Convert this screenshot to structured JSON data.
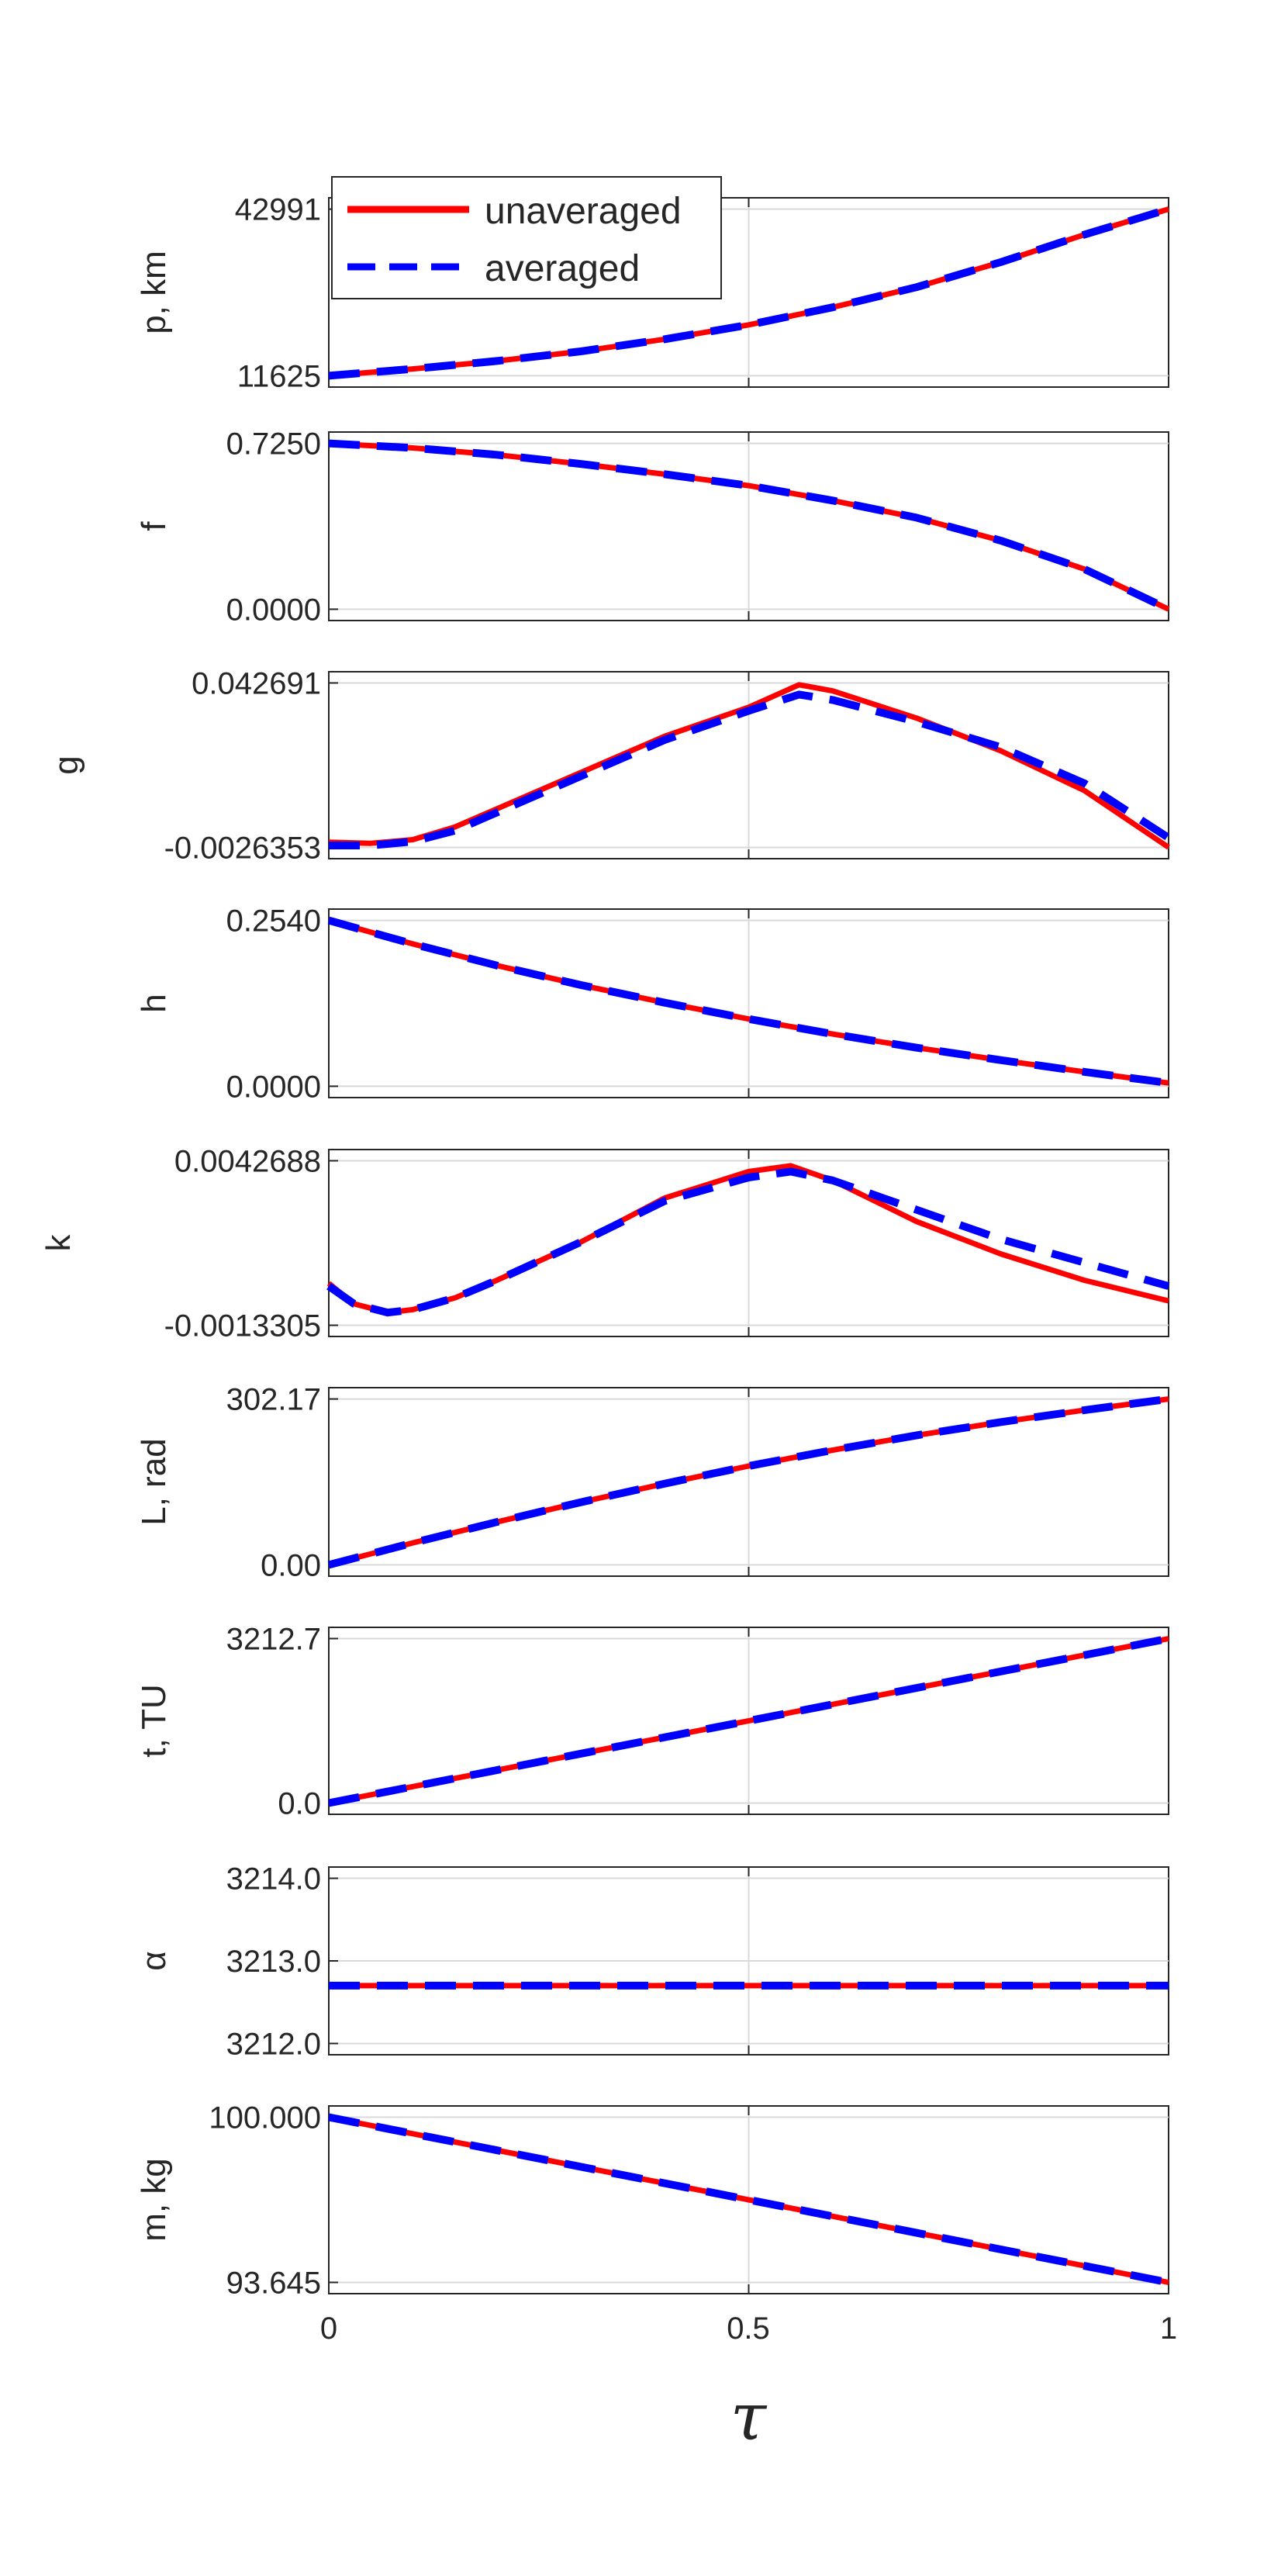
{
  "chart_data": {
    "type": "line",
    "x_label": "τ",
    "x_ticks": [
      "0",
      "0.5",
      "1"
    ],
    "xlim": [
      0,
      1
    ],
    "grid": true,
    "legend": {
      "placement": "top-left",
      "entries": [
        {
          "name": "unaveraged",
          "color": "#ff0000",
          "style": "solid"
        },
        {
          "name": "averaged",
          "color": "#0000ff",
          "style": "dashed"
        }
      ]
    },
    "panels": [
      {
        "ylabel": "p, km",
        "yticks": [
          "11625",
          "42991"
        ],
        "ylim": [
          11625,
          42991
        ],
        "series": [
          {
            "name": "unaveraged",
            "x": [
              0,
              0.1,
              0.2,
              0.3,
              0.4,
              0.5,
              0.6,
              0.7,
              0.8,
              0.9,
              1.0
            ],
            "y": [
              11625,
              12900,
              14400,
              16200,
              18500,
              21200,
              24500,
              28300,
              33000,
              38200,
              42991
            ]
          },
          {
            "name": "averaged",
            "x": [
              0,
              0.1,
              0.2,
              0.3,
              0.4,
              0.5,
              0.6,
              0.7,
              0.8,
              0.9,
              1.0
            ],
            "y": [
              11625,
              12900,
              14400,
              16200,
              18500,
              21200,
              24500,
              28300,
              33000,
              38200,
              42991
            ]
          }
        ]
      },
      {
        "ylabel": "f",
        "yticks": [
          "0.0000",
          "0.7250"
        ],
        "ylim": [
          0,
          0.725
        ],
        "series": [
          {
            "name": "unaveraged",
            "x": [
              0,
              0.1,
              0.2,
              0.3,
              0.4,
              0.5,
              0.6,
              0.7,
              0.8,
              0.9,
              1.0
            ],
            "y": [
              0.725,
              0.705,
              0.675,
              0.635,
              0.59,
              0.54,
              0.475,
              0.4,
              0.3,
              0.175,
              0
            ]
          },
          {
            "name": "averaged",
            "x": [
              0,
              0.1,
              0.2,
              0.3,
              0.4,
              0.5,
              0.6,
              0.7,
              0.8,
              0.9,
              1.0
            ],
            "y": [
              0.725,
              0.705,
              0.675,
              0.635,
              0.59,
              0.54,
              0.475,
              0.4,
              0.3,
              0.175,
              0
            ]
          }
        ]
      },
      {
        "ylabel": "g",
        "yticks": [
          "-0.0026353",
          "0.042691"
        ],
        "ylim": [
          -0.0026353,
          0.042691
        ],
        "series": [
          {
            "name": "unaveraged",
            "x": [
              0,
              0.05,
              0.1,
              0.15,
              0.2,
              0.3,
              0.4,
              0.5,
              0.56,
              0.6,
              0.7,
              0.8,
              0.9,
              1.0
            ],
            "y": [
              -0.0012,
              -0.0015,
              -0.0005,
              0.003,
              0.008,
              0.018,
              0.028,
              0.036,
              0.0422,
              0.0405,
              0.033,
              0.024,
              0.013,
              -0.0026
            ]
          },
          {
            "name": "averaged",
            "x": [
              0,
              0.05,
              0.1,
              0.15,
              0.2,
              0.3,
              0.4,
              0.5,
              0.56,
              0.6,
              0.7,
              0.8,
              0.9,
              1.0
            ],
            "y": [
              -0.0021,
              -0.0021,
              -0.001,
              0.002,
              0.007,
              0.017,
              0.027,
              0.035,
              0.0395,
              0.038,
              0.032,
              0.025,
              0.015,
              0.0
            ]
          }
        ]
      },
      {
        "ylabel": "h",
        "yticks": [
          "0.0000",
          "0.2540"
        ],
        "ylim": [
          0,
          0.254
        ],
        "series": [
          {
            "name": "unaveraged",
            "x": [
              0,
              0.1,
              0.2,
              0.3,
              0.4,
              0.5,
              0.6,
              0.7,
              0.8,
              0.9,
              1.0
            ],
            "y": [
              0.254,
              0.218,
              0.185,
              0.155,
              0.128,
              0.103,
              0.08,
              0.059,
              0.04,
              0.022,
              0.005
            ]
          },
          {
            "name": "averaged",
            "x": [
              0,
              0.1,
              0.2,
              0.3,
              0.4,
              0.5,
              0.6,
              0.7,
              0.8,
              0.9,
              1.0
            ],
            "y": [
              0.254,
              0.218,
              0.185,
              0.155,
              0.128,
              0.103,
              0.08,
              0.059,
              0.04,
              0.022,
              0.005
            ]
          }
        ]
      },
      {
        "ylabel": "k",
        "yticks": [
          "-0.0013305",
          "0.0042688"
        ],
        "ylim": [
          -0.0013305,
          0.0042688
        ],
        "series": [
          {
            "name": "unaveraged",
            "x": [
              0,
              0.03,
              0.07,
              0.1,
              0.15,
              0.2,
              0.3,
              0.4,
              0.5,
              0.55,
              0.6,
              0.7,
              0.8,
              0.9,
              1.0
            ],
            "y": [
              0.0001,
              -0.0006,
              -0.0009,
              -0.0008,
              -0.0004,
              0.0002,
              0.0015,
              0.003,
              0.0039,
              0.0041,
              0.0036,
              0.0022,
              0.0011,
              0.0002,
              -0.0005
            ]
          },
          {
            "name": "averaged",
            "x": [
              0,
              0.03,
              0.07,
              0.1,
              0.15,
              0.2,
              0.3,
              0.4,
              0.5,
              0.55,
              0.6,
              0.7,
              0.8,
              0.9,
              1.0
            ],
            "y": [
              0,
              -0.0006,
              -0.0009,
              -0.0008,
              -0.0004,
              0.0002,
              0.0015,
              0.0029,
              0.0037,
              0.0039,
              0.0036,
              0.0026,
              0.0016,
              0.0008,
              0
            ]
          }
        ]
      },
      {
        "ylabel": "L, rad",
        "yticks": [
          "0.00",
          "302.17"
        ],
        "ylim": [
          0,
          302.17
        ],
        "series": [
          {
            "name": "unaveraged",
            "x": [
              0,
              0.1,
              0.2,
              0.3,
              0.4,
              0.5,
              0.6,
              0.7,
              0.8,
              0.9,
              1.0
            ],
            "y": [
              0,
              40,
              78,
              114,
              148,
              180,
              209,
              236,
              260,
              282,
              302.17
            ]
          },
          {
            "name": "averaged",
            "x": [
              0,
              0.1,
              0.2,
              0.3,
              0.4,
              0.5,
              0.6,
              0.7,
              0.8,
              0.9,
              1.0
            ],
            "y": [
              0,
              40,
              78,
              114,
              148,
              180,
              209,
              236,
              260,
              282,
              302.17
            ]
          }
        ]
      },
      {
        "ylabel": "t, TU",
        "yticks": [
          "0.0",
          "3212.7"
        ],
        "ylim": [
          0,
          3212.7
        ],
        "series": [
          {
            "name": "unaveraged",
            "x": [
              0,
              1
            ],
            "y": [
              0,
              3212.7
            ]
          },
          {
            "name": "averaged",
            "x": [
              0,
              1
            ],
            "y": [
              0,
              3212.7
            ]
          }
        ]
      },
      {
        "ylabel": "α",
        "yticks": [
          "3212.0",
          "3213.0",
          "3214.0"
        ],
        "ylim": [
          3211.9,
          3214.0
        ],
        "series": [
          {
            "name": "unaveraged",
            "x": [
              0,
              1
            ],
            "y": [
              3212.7,
              3212.7
            ]
          },
          {
            "name": "averaged",
            "x": [
              0,
              1
            ],
            "y": [
              3212.7,
              3212.7
            ]
          }
        ]
      },
      {
        "ylabel": "m, kg",
        "yticks": [
          "93.645",
          "100.000"
        ],
        "ylim": [
          93.645,
          100.0
        ],
        "series": [
          {
            "name": "unaveraged",
            "x": [
              0,
              1
            ],
            "y": [
              100.0,
              93.645
            ]
          },
          {
            "name": "averaged",
            "x": [
              0,
              1
            ],
            "y": [
              100.0,
              93.645
            ]
          }
        ]
      }
    ]
  }
}
